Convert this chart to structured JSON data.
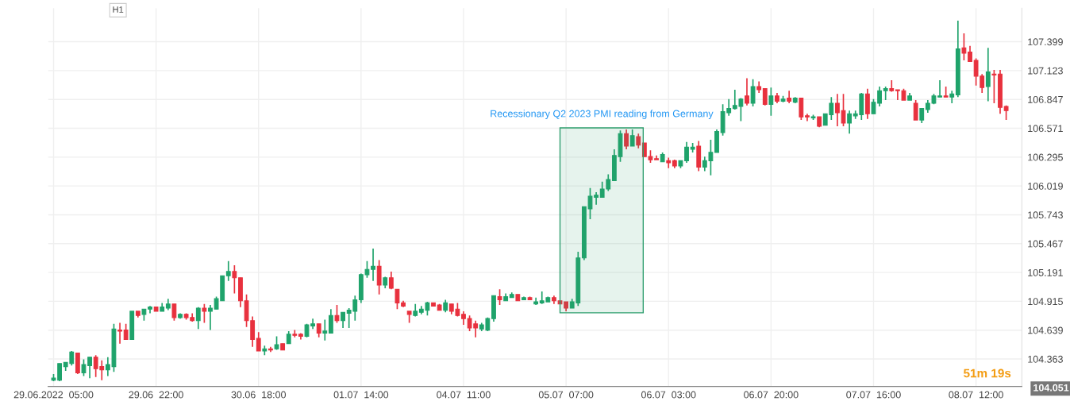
{
  "chart_data": {
    "type": "candlestick",
    "categories": [
      "29.06.2022  05:00",
      null,
      null,
      null,
      null,
      null,
      null,
      null,
      null,
      null,
      null,
      null,
      null,
      null,
      null,
      null,
      null,
      "29.06  22:00",
      null,
      null,
      null,
      null,
      null,
      null,
      null,
      null,
      null,
      null,
      null,
      null,
      null,
      null,
      null,
      null,
      "30.06  18:00",
      null,
      null,
      null,
      null,
      null,
      null,
      null,
      null,
      null,
      null,
      null,
      null,
      null,
      null,
      null,
      null,
      "01.07  14:00",
      null,
      null,
      null,
      null,
      null,
      null,
      null,
      null,
      null,
      null,
      null,
      null,
      null,
      null,
      null,
      null,
      "04.07  11:00",
      null,
      null,
      null,
      null,
      null,
      null,
      null,
      null,
      null,
      null,
      null,
      null,
      null,
      null,
      null,
      null,
      "05.07  07:00",
      null,
      null,
      null,
      null,
      null,
      null,
      null,
      null,
      null,
      null,
      null,
      null,
      null,
      null,
      null,
      null,
      "06.07  03:00",
      null,
      null,
      null,
      null,
      null,
      null,
      null,
      null,
      null,
      null,
      null,
      null,
      null,
      null,
      null,
      null,
      "06.07  20:00",
      null,
      null,
      null,
      null,
      null,
      null,
      null,
      null,
      null,
      null,
      null,
      null,
      null,
      null,
      null,
      null,
      "07.07  16:00",
      null,
      null,
      null,
      null,
      null,
      null,
      null,
      null,
      null,
      null,
      null,
      null,
      null,
      null,
      null,
      null,
      "08.07  12:00",
      null,
      null,
      null,
      null,
      null
    ],
    "ohlc": [
      [
        104.16,
        104.22,
        104.15,
        104.18
      ],
      [
        104.16,
        104.32,
        104.15,
        104.32
      ],
      [
        104.29,
        104.33,
        104.25,
        104.33
      ],
      [
        104.32,
        104.44,
        104.3,
        104.43
      ],
      [
        104.42,
        104.42,
        104.22,
        104.23
      ],
      [
        104.23,
        104.36,
        104.2,
        104.31
      ],
      [
        104.3,
        104.38,
        104.18,
        104.38
      ],
      [
        104.38,
        104.4,
        104.19,
        104.27
      ],
      [
        104.29,
        104.35,
        104.16,
        104.26
      ],
      [
        104.26,
        104.38,
        104.2,
        104.31
      ],
      [
        104.29,
        104.7,
        104.24,
        104.65
      ],
      [
        104.64,
        104.71,
        104.51,
        104.63
      ],
      [
        104.64,
        104.7,
        104.55,
        104.55
      ],
      [
        104.55,
        104.82,
        104.55,
        104.82
      ],
      [
        104.82,
        104.82,
        104.76,
        104.78
      ],
      [
        104.79,
        104.84,
        104.73,
        104.84
      ],
      [
        104.84,
        104.87,
        104.8,
        104.86
      ],
      [
        104.86,
        104.86,
        104.82,
        104.82
      ],
      [
        104.82,
        104.9,
        104.82,
        104.86
      ],
      [
        104.85,
        104.94,
        104.83,
        104.89
      ],
      [
        104.89,
        104.89,
        104.73,
        104.76
      ],
      [
        104.76,
        104.8,
        104.75,
        104.79
      ],
      [
        104.79,
        104.8,
        104.74,
        104.76
      ],
      [
        104.76,
        104.8,
        104.72,
        104.73
      ],
      [
        104.73,
        104.86,
        104.65,
        104.85
      ],
      [
        104.85,
        104.89,
        104.71,
        104.82
      ],
      [
        104.82,
        104.88,
        104.64,
        104.85
      ],
      [
        104.84,
        104.96,
        104.84,
        104.94
      ],
      [
        104.92,
        105.16,
        104.92,
        105.16
      ],
      [
        105.16,
        105.3,
        105.11,
        105.2
      ],
      [
        105.2,
        105.26,
        104.99,
        105.14
      ],
      [
        105.14,
        105.14,
        104.86,
        104.92
      ],
      [
        104.92,
        104.98,
        104.67,
        104.73
      ],
      [
        104.73,
        104.77,
        104.48,
        104.55
      ],
      [
        104.56,
        104.62,
        104.44,
        104.44
      ],
      [
        104.44,
        104.49,
        104.4,
        104.46
      ],
      [
        104.46,
        104.48,
        104.43,
        104.45
      ],
      [
        104.46,
        104.58,
        104.45,
        104.5
      ],
      [
        104.51,
        104.51,
        104.45,
        104.45
      ],
      [
        104.51,
        104.63,
        104.51,
        104.6
      ],
      [
        104.6,
        104.64,
        104.57,
        104.59
      ],
      [
        104.6,
        104.61,
        104.55,
        104.58
      ],
      [
        104.58,
        104.7,
        104.57,
        104.69
      ],
      [
        104.68,
        104.75,
        104.65,
        104.7
      ],
      [
        104.7,
        104.7,
        104.57,
        104.61
      ],
      [
        104.61,
        104.74,
        104.54,
        104.63
      ],
      [
        104.61,
        104.84,
        104.61,
        104.78
      ],
      [
        104.78,
        104.88,
        104.71,
        104.73
      ],
      [
        104.73,
        104.81,
        104.66,
        104.81
      ],
      [
        104.8,
        104.85,
        104.66,
        104.83
      ],
      [
        104.82,
        104.97,
        104.73,
        104.93
      ],
      [
        104.93,
        105.18,
        104.9,
        105.17
      ],
      [
        105.17,
        105.3,
        105.14,
        105.22
      ],
      [
        105.22,
        105.42,
        105.11,
        105.25
      ],
      [
        105.25,
        105.31,
        104.98,
        105.07
      ],
      [
        105.07,
        105.15,
        105.04,
        105.14
      ],
      [
        105.14,
        105.2,
        105.03,
        105.04
      ],
      [
        105.03,
        105.03,
        104.84,
        104.9
      ],
      [
        104.9,
        104.92,
        104.86,
        104.87
      ],
      [
        104.82,
        104.82,
        104.71,
        104.79
      ],
      [
        104.78,
        104.89,
        104.77,
        104.82
      ],
      [
        104.81,
        104.87,
        104.79,
        104.84
      ],
      [
        104.83,
        104.91,
        104.78,
        104.9
      ],
      [
        104.9,
        104.9,
        104.87,
        104.87
      ],
      [
        104.88,
        104.89,
        104.83,
        104.83
      ],
      [
        104.83,
        104.93,
        104.81,
        104.9
      ],
      [
        104.89,
        104.89,
        104.79,
        104.82
      ],
      [
        104.84,
        104.9,
        104.77,
        104.78
      ],
      [
        104.79,
        104.82,
        104.69,
        104.75
      ],
      [
        104.75,
        104.78,
        104.63,
        104.66
      ],
      [
        104.7,
        104.73,
        104.57,
        104.66
      ],
      [
        104.65,
        104.71,
        104.63,
        104.69
      ],
      [
        104.64,
        104.76,
        104.63,
        104.75
      ],
      [
        104.75,
        104.97,
        104.72,
        104.97
      ],
      [
        104.96,
        105.03,
        104.88,
        104.93
      ],
      [
        104.92,
        104.99,
        104.92,
        104.96
      ],
      [
        104.95,
        105.0,
        104.95,
        104.98
      ],
      [
        104.98,
        104.98,
        104.92,
        104.92
      ],
      [
        104.93,
        104.96,
        104.93,
        104.95
      ],
      [
        104.95,
        104.96,
        104.93,
        104.93
      ],
      [
        104.89,
        104.95,
        104.88,
        104.91
      ],
      [
        104.9,
        105.01,
        104.89,
        104.92
      ],
      [
        104.91,
        104.96,
        104.91,
        104.95
      ],
      [
        104.95,
        104.97,
        104.89,
        104.92
      ],
      [
        104.92,
        104.92,
        104.89,
        104.89
      ],
      [
        104.91,
        104.91,
        104.82,
        104.85
      ],
      [
        104.85,
        104.94,
        104.85,
        104.91
      ],
      [
        104.9,
        105.39,
        104.87,
        105.33
      ],
      [
        105.33,
        105.82,
        105.31,
        105.82
      ],
      [
        105.8,
        106.0,
        105.7,
        105.92
      ],
      [
        105.91,
        105.96,
        105.84,
        105.93
      ],
      [
        105.91,
        106.06,
        105.91,
        105.99
      ],
      [
        105.99,
        106.13,
        105.97,
        106.08
      ],
      [
        106.07,
        106.37,
        106.07,
        106.31
      ],
      [
        106.3,
        106.55,
        106.25,
        106.52
      ],
      [
        106.52,
        106.56,
        106.37,
        106.4
      ],
      [
        106.4,
        106.56,
        106.4,
        106.5
      ],
      [
        106.49,
        106.52,
        106.38,
        106.41
      ],
      [
        106.43,
        106.43,
        106.3,
        106.3
      ],
      [
        106.3,
        106.36,
        106.24,
        106.27
      ],
      [
        106.28,
        106.31,
        106.27,
        106.27
      ],
      [
        106.25,
        106.34,
        106.25,
        106.32
      ],
      [
        106.26,
        106.29,
        106.19,
        106.24
      ],
      [
        106.26,
        106.27,
        106.19,
        106.21
      ],
      [
        106.21,
        106.26,
        106.19,
        106.26
      ],
      [
        106.26,
        106.44,
        106.24,
        106.39
      ],
      [
        106.37,
        106.43,
        106.34,
        106.39
      ],
      [
        106.4,
        106.45,
        106.16,
        106.2
      ],
      [
        106.2,
        106.3,
        106.16,
        106.26
      ],
      [
        106.26,
        106.46,
        106.12,
        106.34
      ],
      [
        106.34,
        106.56,
        106.34,
        106.54
      ],
      [
        106.53,
        106.8,
        106.5,
        106.73
      ],
      [
        106.72,
        106.85,
        106.69,
        106.76
      ],
      [
        106.76,
        106.94,
        106.75,
        106.79
      ],
      [
        106.78,
        106.86,
        106.64,
        106.85
      ],
      [
        106.88,
        107.05,
        106.79,
        106.81
      ],
      [
        106.81,
        107.04,
        106.78,
        106.97
      ],
      [
        106.97,
        107.02,
        106.91,
        106.94
      ],
      [
        106.95,
        106.95,
        106.79,
        106.8
      ],
      [
        106.8,
        106.96,
        106.69,
        106.88
      ],
      [
        106.88,
        106.91,
        106.81,
        106.83
      ],
      [
        106.83,
        106.88,
        106.82,
        106.85
      ],
      [
        106.86,
        106.93,
        106.81,
        106.83
      ],
      [
        106.82,
        106.87,
        106.81,
        106.86
      ],
      [
        106.86,
        106.86,
        106.65,
        106.68
      ],
      [
        106.69,
        106.71,
        106.64,
        106.68
      ],
      [
        106.67,
        106.7,
        106.65,
        106.68
      ],
      [
        106.68,
        106.68,
        106.58,
        106.59
      ],
      [
        106.6,
        106.71,
        106.6,
        106.71
      ],
      [
        106.7,
        106.87,
        106.65,
        106.81
      ],
      [
        106.81,
        106.9,
        106.59,
        106.72
      ],
      [
        106.74,
        106.9,
        106.59,
        106.62
      ],
      [
        106.62,
        106.74,
        106.52,
        106.71
      ],
      [
        106.69,
        106.74,
        106.66,
        106.71
      ],
      [
        106.7,
        106.91,
        106.65,
        106.9
      ],
      [
        106.9,
        106.95,
        106.66,
        106.71
      ],
      [
        106.71,
        106.85,
        106.71,
        106.82
      ],
      [
        106.81,
        106.97,
        106.78,
        106.93
      ],
      [
        106.93,
        106.97,
        106.84,
        106.95
      ],
      [
        106.95,
        107.03,
        106.92,
        106.93
      ],
      [
        106.94,
        106.94,
        106.84,
        106.93
      ],
      [
        106.93,
        106.95,
        106.84,
        106.84
      ],
      [
        106.84,
        106.91,
        106.84,
        106.88
      ],
      [
        106.81,
        106.84,
        106.65,
        106.65
      ],
      [
        106.65,
        106.76,
        106.62,
        106.76
      ],
      [
        106.75,
        106.84,
        106.72,
        106.81
      ],
      [
        106.81,
        106.9,
        106.8,
        106.88
      ],
      [
        106.87,
        107.03,
        106.87,
        106.88
      ],
      [
        106.88,
        106.97,
        106.87,
        106.87
      ],
      [
        106.87,
        106.93,
        106.81,
        106.9
      ],
      [
        106.89,
        107.6,
        106.87,
        107.33
      ],
      [
        107.34,
        107.48,
        107.22,
        107.29
      ],
      [
        107.3,
        107.36,
        107.21,
        107.21
      ],
      [
        107.22,
        107.24,
        106.98,
        107.07
      ],
      [
        107.07,
        107.09,
        106.91,
        106.96
      ],
      [
        106.97,
        107.34,
        106.83,
        107.11
      ],
      [
        107.09,
        107.13,
        106.81,
        107.08
      ],
      [
        107.09,
        107.13,
        106.71,
        106.77
      ],
      [
        106.78,
        106.79,
        106.65,
        106.74
      ]
    ],
    "ylim": [
      104.1,
      107.72
    ],
    "yticks": [
      104.363,
      104.639,
      104.915,
      105.191,
      105.467,
      105.743,
      106.019,
      106.295,
      106.571,
      106.847,
      107.123,
      107.399
    ],
    "annotations": [
      "H1",
      "Recessionary Q2 2023 PMI reading from Germany",
      "51m 19s",
      "104.051"
    ],
    "grid": true
  }
}
